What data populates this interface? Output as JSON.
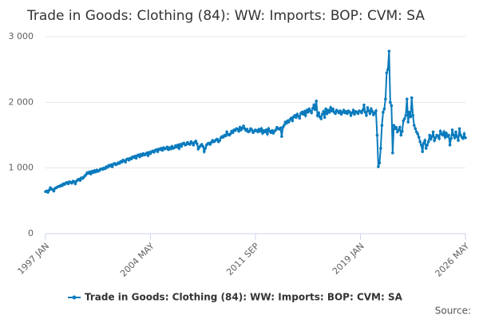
{
  "chart_data": {
    "type": "line",
    "title": "Trade in Goods: Clothing (84): WW: Imports: BOP: CVM: SA",
    "source": "Source:",
    "categories": [
      "1997 JAN",
      null,
      null,
      null,
      null,
      null,
      null,
      null,
      null,
      null,
      null,
      null,
      null,
      null,
      null,
      null,
      null,
      null,
      null,
      null,
      null,
      null,
      null,
      null,
      null,
      null,
      null,
      null,
      null,
      null,
      null,
      null,
      null,
      null,
      null,
      null,
      null,
      null,
      null,
      null,
      null,
      null,
      null,
      null,
      null,
      null,
      null,
      null,
      null,
      null,
      null,
      null,
      null,
      null,
      null,
      null,
      null,
      null,
      null,
      null,
      null,
      null,
      null,
      null,
      null,
      null,
      null,
      null,
      null,
      null,
      null,
      null,
      null,
      null,
      null,
      null,
      null,
      null,
      null,
      null,
      null,
      null,
      null,
      null,
      null,
      null,
      null,
      null,
      "2004 MAY",
      null,
      null,
      null,
      null,
      null,
      null,
      null,
      null,
      null,
      null,
      null,
      null,
      null,
      null,
      null,
      null,
      null,
      null,
      null,
      null,
      null,
      null,
      null,
      null,
      null,
      null,
      null,
      null,
      null,
      null,
      null,
      null,
      null,
      null,
      null,
      null,
      null,
      null,
      null,
      null,
      null,
      null,
      null,
      null,
      null,
      null,
      null,
      null,
      null,
      null,
      null,
      null,
      null,
      null,
      null,
      null,
      null,
      null,
      null,
      null,
      null,
      null,
      null,
      null,
      null,
      null,
      null,
      null,
      null,
      null,
      null,
      null,
      null,
      null,
      null,
      null,
      null,
      null,
      null,
      null,
      null,
      null,
      null,
      null,
      null,
      null,
      null,
      "2011 SEP",
      null,
      null,
      null,
      null,
      null,
      null,
      null,
      null,
      null,
      null,
      null,
      null,
      null,
      null,
      null,
      null,
      null,
      null,
      null,
      null,
      null,
      null,
      null,
      null,
      null,
      null,
      null,
      null,
      null,
      null,
      null,
      null,
      null,
      null,
      null,
      null,
      null,
      null,
      null,
      null,
      null,
      null,
      null,
      null,
      null,
      null,
      null,
      null,
      null,
      null,
      null,
      null,
      null,
      null,
      null,
      null,
      null,
      null,
      null,
      null,
      null,
      null,
      null,
      null,
      null,
      null,
      null,
      null,
      null,
      null,
      null,
      null,
      null,
      null,
      null,
      null,
      null,
      null,
      null,
      null,
      null,
      null,
      null,
      null,
      null,
      null,
      null,
      "2019 JAN",
      null,
      null,
      null,
      null,
      null,
      null,
      null,
      null,
      null,
      null,
      null,
      null,
      null,
      null,
      null,
      null,
      null,
      null,
      null,
      null,
      null,
      null,
      null,
      null,
      null,
      null,
      null,
      null,
      null,
      null,
      null,
      null,
      null,
      null,
      null,
      null,
      null,
      null,
      null,
      null,
      null,
      null,
      null,
      null,
      null,
      null,
      null,
      null,
      null,
      null,
      null,
      null,
      null,
      null,
      null,
      null,
      null,
      null,
      null,
      null,
      null,
      null,
      null,
      null,
      null,
      null,
      null,
      null,
      null,
      null,
      null,
      null,
      null,
      null,
      null,
      null,
      null,
      null,
      null,
      null,
      null,
      null,
      null,
      null,
      null,
      null,
      null,
      "2026 MAY"
    ],
    "series": [
      {
        "name": "Trade in Goods: Clothing (84): WW: Imports: BOP: CVM: SA",
        "color": "#0a7bbd",
        "values": [
          640,
          650,
          630,
          660,
          700,
          680,
          670,
          650,
          690,
          700,
          710,
          720,
          720,
          740,
          730,
          760,
          750,
          770,
          780,
          760,
          790,
          780,
          770,
          800,
          790,
          760,
          800,
          820,
          830,
          810,
          850,
          840,
          860,
          880,
          900,
          930,
          920,
          940,
          910,
          950,
          930,
          960,
          940,
          970,
          950,
          960,
          980,
          990,
          980,
          1000,
          990,
          1020,
          1010,
          1040,
          1030,
          1050,
          1020,
          1060,
          1070,
          1050,
          1060,
          1080,
          1070,
          1100,
          1090,
          1120,
          1110,
          1090,
          1130,
          1140,
          1120,
          1150,
          1140,
          1170,
          1160,
          1180,
          1150,
          1190,
          1200,
          1170,
          1210,
          1190,
          1220,
          1200,
          1210,
          1230,
          1190,
          1240,
          1220,
          1250,
          1260,
          1240,
          1270,
          1280,
          1250,
          1290,
          1280,
          1300,
          1270,
          1310,
          1290,
          1300,
          1320,
          1280,
          1310,
          1290,
          1330,
          1300,
          1310,
          1340,
          1320,
          1350,
          1300,
          1360,
          1330,
          1370,
          1380,
          1350,
          1360,
          1390,
          1370,
          1360,
          1400,
          1380,
          1350,
          1390,
          1410,
          1370,
          1290,
          1320,
          1340,
          1360,
          1330,
          1250,
          1300,
          1350,
          1370,
          1380,
          1360,
          1390,
          1420,
          1400,
          1410,
          1430,
          1440,
          1400,
          1420,
          1460,
          1480,
          1470,
          1500,
          1490,
          1550,
          1510,
          1500,
          1520,
          1560,
          1540,
          1580,
          1570,
          1600,
          1590,
          1560,
          1620,
          1580,
          1610,
          1640,
          1600,
          1570,
          1590,
          1550,
          1560,
          1600,
          1580,
          1540,
          1560,
          1580,
          1570,
          1550,
          1590,
          1560,
          1600,
          1530,
          1570,
          1550,
          1580,
          1520,
          1600,
          1560,
          1540,
          1570,
          1530,
          1560,
          1580,
          1620,
          1600,
          1590,
          1610,
          1480,
          1620,
          1650,
          1700,
          1680,
          1720,
          1700,
          1740,
          1760,
          1720,
          1780,
          1800,
          1770,
          1820,
          1790,
          1760,
          1830,
          1850,
          1820,
          1860,
          1800,
          1880,
          1850,
          1900,
          1870,
          1840,
          1910,
          1960,
          1890,
          2020,
          1800,
          1840,
          1780,
          1750,
          1820,
          1860,
          1770,
          1900,
          1830,
          1880,
          1850,
          1920,
          1870,
          1900,
          1850,
          1830,
          1880,
          1860,
          1840,
          1870,
          1820,
          1850,
          1880,
          1840,
          1860,
          1830,
          1870,
          1850,
          1800,
          1840,
          1880,
          1820,
          1860,
          1850,
          1830,
          1870,
          1860,
          1840,
          1880,
          1960,
          1850,
          1800,
          1920,
          1870,
          1830,
          1900,
          1860,
          1810,
          1840,
          1870,
          1500,
          1020,
          1080,
          1300,
          1650,
          1850,
          1900,
          2050,
          2450,
          2500,
          2780,
          2000,
          1950,
          1230,
          1650,
          1600,
          1620,
          1550,
          1580,
          1620,
          1500,
          1560,
          1720,
          1750,
          1800,
          2050,
          1700,
          1850,
          1780,
          2070,
          1800,
          1650,
          1600,
          1550,
          1520,
          1470,
          1400,
          1350,
          1250,
          1380,
          1420,
          1300,
          1350,
          1400,
          1500,
          1440,
          1480,
          1550,
          1420,
          1460,
          1500,
          1490,
          1450,
          1560,
          1520,
          1500,
          1550,
          1470,
          1530,
          1480,
          1500,
          1350,
          1450,
          1580,
          1500,
          1460,
          1550,
          1480,
          1420,
          1600,
          1500,
          1470,
          1450,
          1520,
          1460
        ]
      }
    ],
    "ylim": [
      0,
      3000
    ],
    "yticks": [
      0,
      {
        "value": 1000,
        "label": "1 000"
      },
      {
        "value": 2000,
        "label": "2 000"
      },
      {
        "value": 3000,
        "label": "3 000"
      }
    ],
    "grid": true
  }
}
